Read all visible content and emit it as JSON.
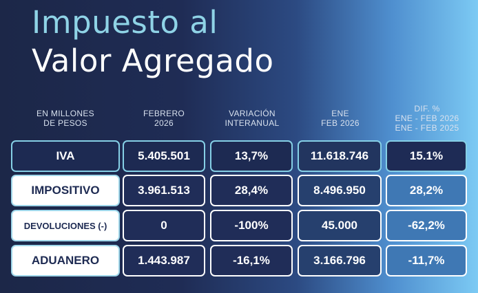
{
  "title": {
    "line1": "Impuesto al",
    "line2": "Valor Agregado"
  },
  "headers": [
    "EN MILLONES\nDE PESOS",
    "FEBRERO\n2026",
    "VARIACIÓN\nINTERANUAL",
    "ENE\nFEB 2026",
    "DIF. %\nENE - FEB 2026\nENE - FEB 2025"
  ],
  "rows": [
    {
      "label": "IVA",
      "febrero": "5.405.501",
      "variacion": "13,7%",
      "ene_feb": "11.618.746",
      "dif": "15.1%"
    },
    {
      "label": "IMPOSITIVO",
      "febrero": "3.961.513",
      "variacion": "28,4%",
      "ene_feb": "8.496.950",
      "dif": "28,2%"
    },
    {
      "label": "DEVOLUCIONES (-)",
      "febrero": "0",
      "variacion": "-100%",
      "ene_feb": "45.000",
      "dif": "-62,2%"
    },
    {
      "label": "ADUANERO",
      "febrero": "1.443.987",
      "variacion": "-16,1%",
      "ene_feb": "3.166.796",
      "dif": "-11,7%"
    }
  ],
  "colors": {
    "title_accent": "#8fd3e6",
    "title_main": "#ffffff",
    "cell_dark": "#202d58",
    "cell_border": "#ffffff",
    "iva_border": "#86d0e6"
  }
}
